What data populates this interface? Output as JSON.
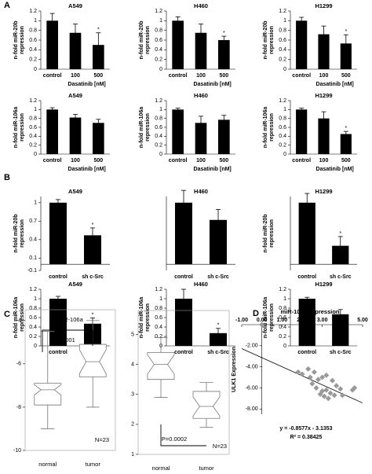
{
  "chart_data": [
    {
      "type": "bar",
      "panel": "A",
      "title": "A549",
      "ylabel": [
        "n-fold miR-20b",
        "repression"
      ],
      "categories": [
        "control",
        "100",
        "500"
      ],
      "xlabel": "Dasatinib [nM]",
      "values": [
        1,
        0.75,
        0.5
      ],
      "errors": [
        0.15,
        0.18,
        0.25
      ],
      "significance": [
        null,
        null,
        "*"
      ],
      "color": "#000000",
      "ylim": [
        0,
        1.2
      ],
      "yticks": [
        0,
        0.2,
        0.4,
        0.6,
        0.8,
        1,
        1.2
      ]
    },
    {
      "type": "bar",
      "title": "H460",
      "ylabel": [
        "n-fold miR-20b",
        "repression"
      ],
      "categories": [
        "control",
        "100",
        "500"
      ],
      "xlabel": "Dasatinib [nM]",
      "values": [
        1,
        0.75,
        0.6
      ],
      "errors": [
        0.08,
        0.18,
        0.08
      ],
      "significance": [
        null,
        null,
        "*"
      ],
      "color": "#000000",
      "ylim": [
        0,
        1.2
      ],
      "yticks": [
        0,
        0.2,
        0.4,
        0.6,
        0.8,
        1,
        1.2
      ]
    },
    {
      "type": "bar",
      "title": "H1299",
      "ylabel": [
        "n-fold miR-20b",
        "repression"
      ],
      "categories": [
        "control",
        "100",
        "500"
      ],
      "xlabel": "Dasatinib [nM]",
      "values": [
        1,
        0.72,
        0.53
      ],
      "errors": [
        0.07,
        0.17,
        0.18
      ],
      "significance": [
        null,
        null,
        "*"
      ],
      "color": "#000000",
      "ylim": [
        0,
        1.2
      ],
      "yticks": [
        0,
        0.2,
        0.4,
        0.6,
        0.8,
        1,
        1.2
      ]
    },
    {
      "type": "bar",
      "title": "A549",
      "ylabel": [
        "n-fold miR-106a",
        "repression"
      ],
      "categories": [
        "control",
        "100",
        "500"
      ],
      "xlabel": "Dasatinib [nM]",
      "values": [
        1,
        0.82,
        0.7
      ],
      "errors": [
        0.04,
        0.07,
        0.08
      ],
      "color": "#000000",
      "ylim": [
        0,
        1.2
      ],
      "yticks": [
        0,
        0.2,
        0.4,
        0.6,
        0.8,
        1,
        1.2
      ]
    },
    {
      "type": "bar",
      "title": "H460",
      "ylabel": [
        "n-fold miR-106a",
        "repression"
      ],
      "categories": [
        "control",
        "100",
        "500"
      ],
      "xlabel": "Dasatinib [nM]",
      "values": [
        1,
        0.7,
        0.77
      ],
      "errors": [
        0.03,
        0.15,
        0.1
      ],
      "color": "#000000",
      "ylim": [
        0,
        1.2
      ],
      "yticks": [
        0,
        0.2,
        0.4,
        0.6,
        0.8,
        1,
        1.2
      ]
    },
    {
      "type": "bar",
      "title": "H1299",
      "ylabel": [
        "n-fold miR-106a",
        "repression"
      ],
      "categories": [
        "control",
        "100",
        "500"
      ],
      "xlabel": "Dasatinib [nM]",
      "values": [
        1,
        0.8,
        0.45
      ],
      "errors": [
        0.03,
        0.15,
        0.06
      ],
      "significance": [
        null,
        null,
        "*"
      ],
      "color": "#000000",
      "ylim": [
        0,
        1.2
      ],
      "yticks": [
        0,
        0.2,
        0.4,
        0.6,
        0.8,
        1,
        1.2
      ]
    },
    {
      "type": "bar",
      "panel": "B",
      "title": "A549",
      "ylabel": [
        "n-fold miR-20b",
        "repression"
      ],
      "categories": [
        "control",
        "sh c-Src"
      ],
      "values": [
        1,
        0.47
      ],
      "errors": [
        0.05,
        0.12
      ],
      "significance": [
        null,
        "*"
      ],
      "color": "#000000",
      "ylim": [
        -0.1,
        1.1
      ],
      "yticks": [
        -0.1,
        0.1,
        0.4,
        0.7,
        1
      ]
    },
    {
      "type": "bar",
      "title": "H460",
      "categories": [
        "control",
        "sh c-Src"
      ],
      "values": [
        1,
        0.72
      ],
      "errors": [
        0.2,
        0.17
      ],
      "color": "#000000",
      "ylim": [
        -0.1,
        1.1
      ]
    },
    {
      "type": "bar",
      "title": "H1299",
      "ylabel": [
        "n-fold miR-20b",
        "repression"
      ],
      "categories": [
        "control",
        "sh c-Src"
      ],
      "values": [
        1,
        0.3
      ],
      "errors": [
        0.15,
        0.15
      ],
      "significance": [
        null,
        "*"
      ],
      "color": "#000000",
      "ylim": [
        -0.1,
        1.1
      ]
    },
    {
      "type": "bar",
      "title": "A549",
      "ylabel": [
        "n-fold miR-106a",
        "repression"
      ],
      "categories": [
        "control",
        "sh c-Src"
      ],
      "values": [
        1,
        0.47
      ],
      "errors": [
        0.05,
        0.12
      ],
      "significance": [
        null,
        "*"
      ],
      "color": "#000000",
      "ylim": [
        0,
        1.2
      ],
      "yticks": [
        0,
        0.2,
        0.4,
        0.6,
        0.8,
        1,
        1.2
      ]
    },
    {
      "type": "bar",
      "title": "H460",
      "ylabel": [
        "n-fold miR-106a",
        "repression"
      ],
      "categories": [
        "control",
        "sh c-Src"
      ],
      "values": [
        1,
        0.27
      ],
      "errors": [
        0.2,
        0.1
      ],
      "significance": [
        null,
        "*"
      ],
      "color": "#000000",
      "ylim": [
        0,
        1.2
      ],
      "yticks": [
        0,
        0.2,
        0.4,
        0.6,
        0.8,
        1,
        1.2
      ]
    },
    {
      "type": "bar",
      "title": "H1299",
      "ylabel": [
        "n-fold miR-106a",
        "repression"
      ],
      "categories": [
        "control",
        "sh c-Src"
      ],
      "values": [
        1,
        0.67
      ],
      "errors": [
        0.03,
        0.1
      ],
      "color": "#000000",
      "ylim": [
        0,
        1.2
      ],
      "yticks": [
        0,
        0.2,
        0.4,
        0.6,
        0.8,
        1,
        1.2
      ]
    },
    {
      "type": "box",
      "panel": "C",
      "title": "miR-106a",
      "categories": [
        "normal",
        "tumor"
      ],
      "boxes": [
        {
          "min": -9.0,
          "q1": -7.9,
          "median": -7.2,
          "q3": -6.9,
          "max": -4.5
        },
        {
          "min": -8.0,
          "q1": -6.6,
          "median": -5.9,
          "q3": -5.1,
          "max": -4.0
        }
      ],
      "annotations": [
        "p<0.0001",
        "N=23"
      ],
      "color": "#777777",
      "ylim": [
        -10,
        -3.5
      ],
      "yticks": [
        -10,
        -8,
        -6,
        -4
      ]
    },
    {
      "type": "box",
      "title": "ULK1",
      "categories": [
        "normal",
        "tumor"
      ],
      "boxes": [
        {
          "min": 2.9,
          "q1": 3.5,
          "median": 4.0,
          "q3": 4.4,
          "max": 4.9
        },
        {
          "min": 1.9,
          "q1": 2.2,
          "median": 2.6,
          "q3": 3.1,
          "max": 3.4
        }
      ],
      "annotations": [
        "P=0.0002",
        "N=23"
      ],
      "color": "#777777",
      "ylim": [
        1,
        5.8
      ],
      "yticks": [
        1,
        2,
        3,
        4,
        5
      ]
    },
    {
      "type": "scatter",
      "panel": "D",
      "title": "miR-106a expression",
      "ylabel": "ULK1 Expression",
      "x": [
        0,
        1.8,
        2.0,
        2.3,
        2.4,
        2.5,
        2.6,
        2.7,
        2.8,
        2.9,
        3.0,
        3.0,
        3.1,
        3.2,
        3.2,
        3.3,
        3.4,
        3.5,
        3.6,
        3.7,
        3.9,
        4.0,
        4.5,
        4.6
      ],
      "values": [
        0,
        -4.5,
        -4.7,
        -4.2,
        -5.0,
        -5.6,
        -4.5,
        -6.0,
        -5.2,
        -6.6,
        -6.3,
        -5.0,
        -6.8,
        -4.8,
        -6.2,
        -7.0,
        -6.5,
        -5.3,
        -6.7,
        -5.8,
        -6.1,
        -6.7,
        -6.2,
        -6.0
      ],
      "color": "#999999",
      "trendline": {
        "slope": -0.8577,
        "intercept": -3.1353
      },
      "equation": [
        "y = -0.8577x - 3.1353",
        "R² = 0.38425"
      ],
      "xlim": [
        -1,
        5
      ],
      "ylim": [
        -8.5,
        0
      ],
      "xticks": [
        {
          "value": -1,
          "label": "-1.00"
        },
        {
          "value": 0,
          "label": "0.00"
        },
        {
          "value": 1,
          "label": "1.00"
        },
        {
          "value": 2,
          "label": "2.00"
        },
        {
          "value": 3,
          "label": "3.00"
        },
        {
          "value": 4,
          "label": "4.00"
        },
        {
          "value": 5,
          "label": "5.00"
        }
      ],
      "yticks": [
        {
          "value": -2,
          "label": "-2.00"
        },
        {
          "value": -4,
          "label": "-4.00"
        },
        {
          "value": -6,
          "label": "-6.00"
        },
        {
          "value": -8,
          "label": "-8.00"
        }
      ]
    }
  ]
}
